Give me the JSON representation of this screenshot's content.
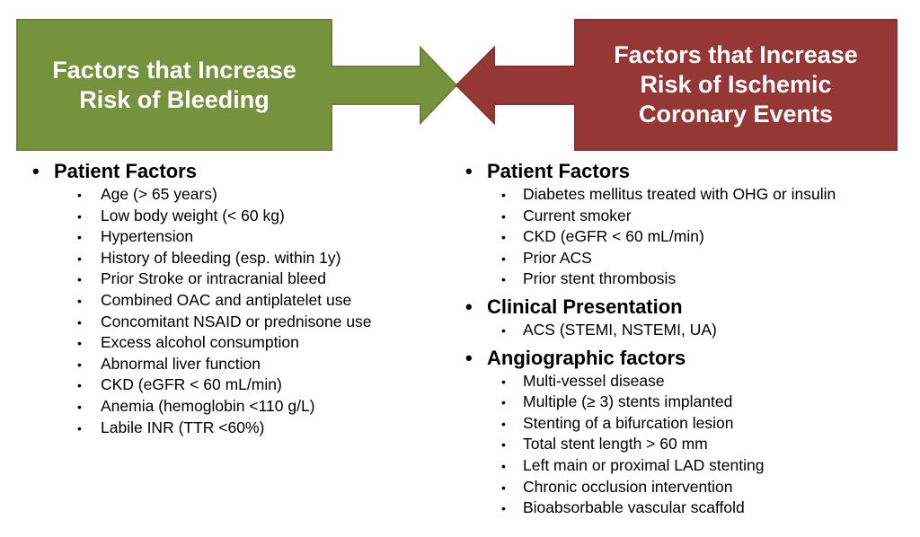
{
  "colors": {
    "bleeding_green": "#76923C",
    "bleeding_green_border": "#6B8438",
    "ischemic_red": "#953735",
    "ischemic_red_border": "#8A3230",
    "text": "#000000",
    "title_text": "#FFFFFF"
  },
  "bleeding_panel": {
    "title": "Factors that Increase Risk of Bleeding",
    "title_lines": [
      "Factors that Increase",
      "Risk of Bleeding"
    ],
    "sections": [
      {
        "heading": "Patient Factors",
        "items": [
          "Age (> 65 years)",
          "Low body weight (< 60 kg)",
          "Hypertension",
          "History of bleeding (esp. within 1y)",
          "Prior Stroke or intracranial bleed",
          "Combined OAC and antiplatelet use",
          "Concomitant NSAID or prednisone use",
          "Excess alcohol consumption",
          "Abnormal liver function",
          "CKD (eGFR < 60 mL/min)",
          "Anemia (hemoglobin <110 g/L)",
          "Labile INR (TTR <60%)"
        ]
      }
    ]
  },
  "ischemic_panel": {
    "title": "Factors that Increase Risk of Ischemic Coronary Events",
    "title_lines": [
      "Factors that Increase",
      "Risk of Ischemic",
      "Coronary Events"
    ],
    "sections": [
      {
        "heading": "Patient Factors",
        "items": [
          "Diabetes mellitus treated with OHG or insulin",
          "Current smoker",
          "CKD (eGFR < 60 mL/min)",
          "Prior ACS",
          "Prior stent thrombosis"
        ]
      },
      {
        "heading": "Clinical Presentation",
        "items": [
          "ACS (STEMI, NSTEMI, UA)"
        ]
      },
      {
        "heading": "Angiographic factors",
        "items": [
          "Multi-vessel disease",
          "Multiple (≥ 3) stents implanted",
          "Stenting of a bifurcation lesion",
          "Total stent length > 60 mm",
          "Left main or proximal LAD stenting",
          "Chronic occlusion intervention",
          "Bioabsorbable vascular scaffold"
        ]
      }
    ]
  },
  "bullet_glyph": "•"
}
